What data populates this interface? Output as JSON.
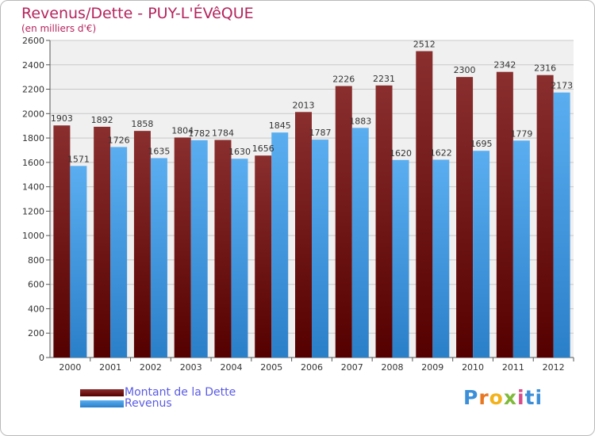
{
  "header": {
    "title": "Revenus/Dette - PUY-L'ÉVêQUE",
    "subtitle": "(en milliers d'€)"
  },
  "legend": {
    "debt_label": "Montant de la Dette",
    "revenue_label": "Revenus"
  },
  "brand": {
    "letters": [
      "P",
      "r",
      "o",
      "x",
      "i",
      "ti"
    ]
  },
  "colors": {
    "debt_top": "#8a2e2e",
    "debt_bottom": "#550000",
    "revenue_top": "#5aaef0",
    "revenue_bottom": "#2a7fc9",
    "title": "#b5245c",
    "legend_text": "#5a5ae6",
    "plot_bg": "#f0f0f0",
    "grid": "#c8c8c8"
  },
  "chart_data": {
    "type": "bar",
    "title": "Revenus/Dette - PUY-L'ÉVêQUE",
    "ylabel": "(en milliers d'€)",
    "xlabel": "",
    "ylim": [
      0,
      2600
    ],
    "yticks": [
      0,
      200,
      400,
      600,
      800,
      1000,
      1200,
      1400,
      1600,
      1800,
      2000,
      2200,
      2400,
      2600
    ],
    "grid": true,
    "legend_position": "bottom-left",
    "categories": [
      "2000",
      "2001",
      "2002",
      "2003",
      "2004",
      "2005",
      "2006",
      "2007",
      "2008",
      "2009",
      "2010",
      "2011",
      "2012"
    ],
    "series": [
      {
        "name": "Montant de la Dette",
        "values": [
          1903,
          1892,
          1858,
          1804,
          1784,
          1656,
          2013,
          2226,
          2231,
          2512,
          2300,
          2342,
          2316
        ]
      },
      {
        "name": "Revenus",
        "values": [
          1571,
          1726,
          1635,
          1782,
          1630,
          1845,
          1787,
          1883,
          1620,
          1622,
          1695,
          1779,
          2173
        ]
      }
    ]
  }
}
